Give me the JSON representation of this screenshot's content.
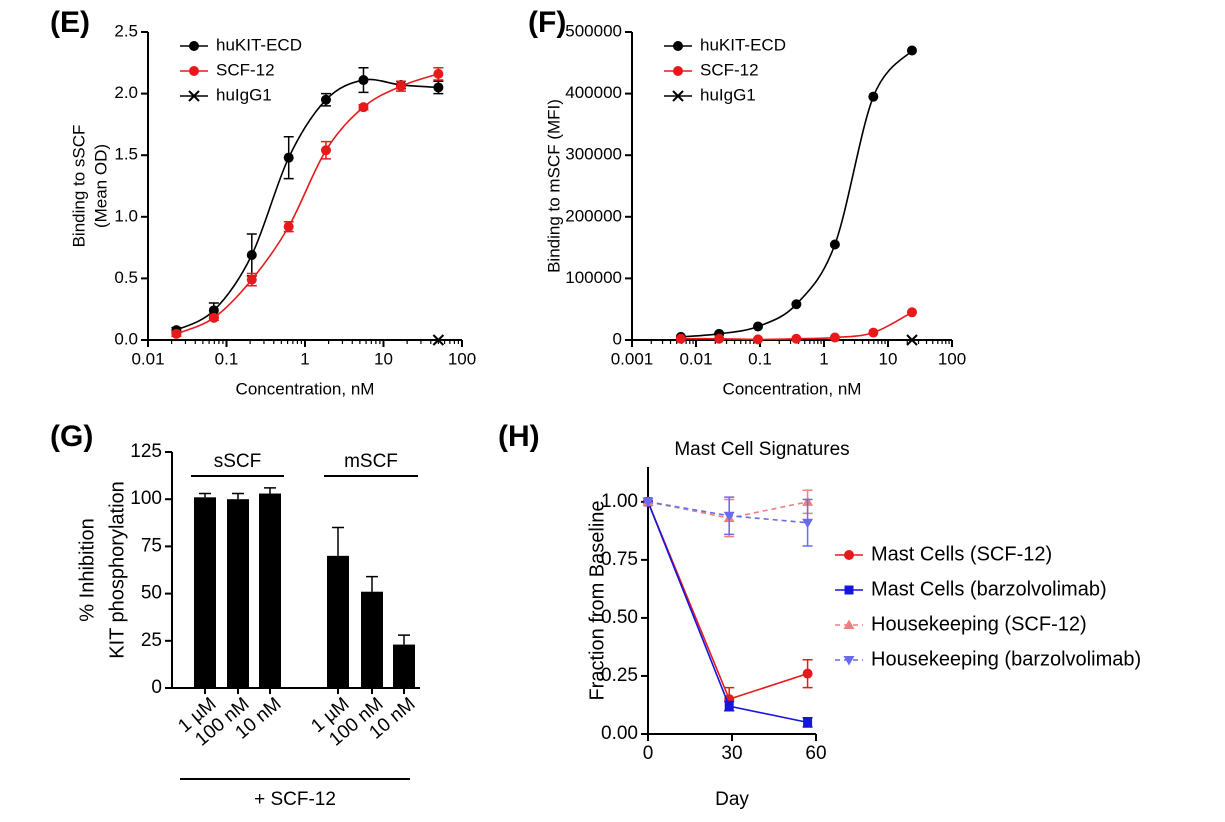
{
  "chart_data": [
    {
      "type": "scatter",
      "panel": "(E)",
      "xlabel": "Concentration, nM",
      "ylabel": [
        "Binding to sSCF",
        "(Mean OD)"
      ],
      "xscale": "log",
      "xlim": [
        0.01,
        100
      ],
      "xticks": [
        0.01,
        0.1,
        1,
        10,
        100
      ],
      "ylim": [
        0,
        2.5
      ],
      "yticks": [
        {
          "value": 0,
          "label": "0.0"
        },
        0.5,
        {
          "value": 1,
          "label": "1.0"
        },
        1.5,
        {
          "value": 2,
          "label": "2.0"
        },
        2.5
      ],
      "legend": "upper left",
      "x": [
        0.023,
        0.069,
        0.21,
        0.62,
        1.85,
        5.56,
        16.7,
        50
      ],
      "series": [
        {
          "name": "huKIT-ECD",
          "color": "#000000",
          "marker": "circle",
          "values": [
            0.08,
            0.24,
            0.69,
            1.48,
            1.95,
            2.11,
            2.07,
            2.05
          ],
          "errors": [
            0.02,
            0.06,
            0.17,
            0.17,
            0.05,
            0.1,
            0.03,
            0.05
          ]
        },
        {
          "name": "SCF-12",
          "color": "#e8191b",
          "marker": "circle",
          "values": [
            0.05,
            0.18,
            0.49,
            0.92,
            1.54,
            1.89,
            2.06,
            2.16
          ],
          "errors": [
            0.02,
            0.02,
            0.05,
            0.04,
            0.07,
            0.02,
            0.04,
            0.05
          ]
        },
        {
          "name": "huIgG1",
          "color": "#000000",
          "marker": "x",
          "values": [
            null,
            null,
            null,
            null,
            null,
            null,
            null,
            0
          ]
        }
      ]
    },
    {
      "type": "scatter",
      "panel": "(F)",
      "xlabel": "Concentration, nM",
      "ylabel": [
        "Binding to mSCF (MFI)"
      ],
      "xscale": "log",
      "xlim": [
        0.001,
        100
      ],
      "xticks": [
        0.001,
        0.01,
        0.1,
        1,
        10,
        100
      ],
      "ylim": [
        0,
        500000
      ],
      "yticks": [
        0,
        100000,
        200000,
        300000,
        400000,
        500000
      ],
      "legend": "upper left",
      "x": [
        0.0058,
        0.023,
        0.093,
        0.37,
        1.48,
        5.9,
        23.7
      ],
      "series": [
        {
          "name": "huKIT-ECD",
          "color": "#000000",
          "marker": "circle",
          "values": [
            5000,
            10000,
            22000,
            58000,
            155000,
            395000,
            470000
          ]
        },
        {
          "name": "SCF-12",
          "color": "#e8191b",
          "marker": "circle",
          "values": [
            2000,
            2000,
            1000,
            2000,
            4000,
            12000,
            45000
          ]
        },
        {
          "name": "huIgG1",
          "color": "#000000",
          "marker": "x",
          "values": [
            null,
            null,
            null,
            null,
            null,
            null,
            0
          ]
        }
      ]
    },
    {
      "type": "bar",
      "panel": "(G)",
      "ylabel": [
        "% Inhibition",
        "KIT phosphorylation"
      ],
      "xlabel": "+ SCF-12",
      "groups": [
        "sSCF",
        "mSCF"
      ],
      "categories": [
        "1 µM",
        "100 nM",
        "10 nM",
        "1 µM",
        "100 nM",
        "10 nM"
      ],
      "values": [
        101,
        100,
        103,
        70,
        51,
        23
      ],
      "errors": [
        2,
        3,
        3,
        15,
        8,
        5
      ],
      "color": "#000000",
      "ylim": [
        0,
        125
      ],
      "yticks": [
        0,
        25,
        50,
        75,
        100,
        125
      ]
    },
    {
      "type": "line",
      "panel": "(H)",
      "title": "Mast Cell Signatures",
      "xlabel": "Day",
      "ylabel": [
        "Fraction from Baseline"
      ],
      "xlim": [
        0,
        60
      ],
      "xticks": [
        0,
        30,
        60
      ],
      "ylim": [
        0,
        1.15
      ],
      "yticks": [
        {
          "value": 0,
          "label": "0.00"
        },
        {
          "value": 0.25,
          "label": "0.25"
        },
        {
          "value": 0.5,
          "label": "0.50"
        },
        {
          "value": 0.75,
          "label": "0.75"
        },
        {
          "value": 1,
          "label": "1.00"
        }
      ],
      "legend": "right",
      "x": [
        0,
        29,
        57
      ],
      "series": [
        {
          "name": "Mast Cells (SCF-12)",
          "color": "#e8191b",
          "marker": "circle",
          "linestyle": "solid",
          "values": [
            1.0,
            0.15,
            0.26
          ],
          "errors": [
            0,
            0.05,
            0.06
          ]
        },
        {
          "name": "Mast Cells (barzolvolimab)",
          "color": "#1515e0",
          "marker": "square",
          "linestyle": "solid",
          "values": [
            1.0,
            0.12,
            0.05
          ],
          "errors": [
            0,
            0.02,
            0.02
          ]
        },
        {
          "name": "Housekeeping (SCF-12)",
          "color": "#f08080",
          "marker": "triangle-up",
          "linestyle": "dashed",
          "values": [
            1.0,
            0.93,
            1.0
          ],
          "errors": [
            0,
            0.08,
            0.05
          ]
        },
        {
          "name": "Housekeeping (barzolvolimab)",
          "color": "#6a6aee",
          "marker": "triangle-down",
          "linestyle": "dashed",
          "values": [
            1.0,
            0.94,
            0.91
          ],
          "errors": [
            0,
            0.08,
            0.1
          ]
        }
      ]
    }
  ]
}
